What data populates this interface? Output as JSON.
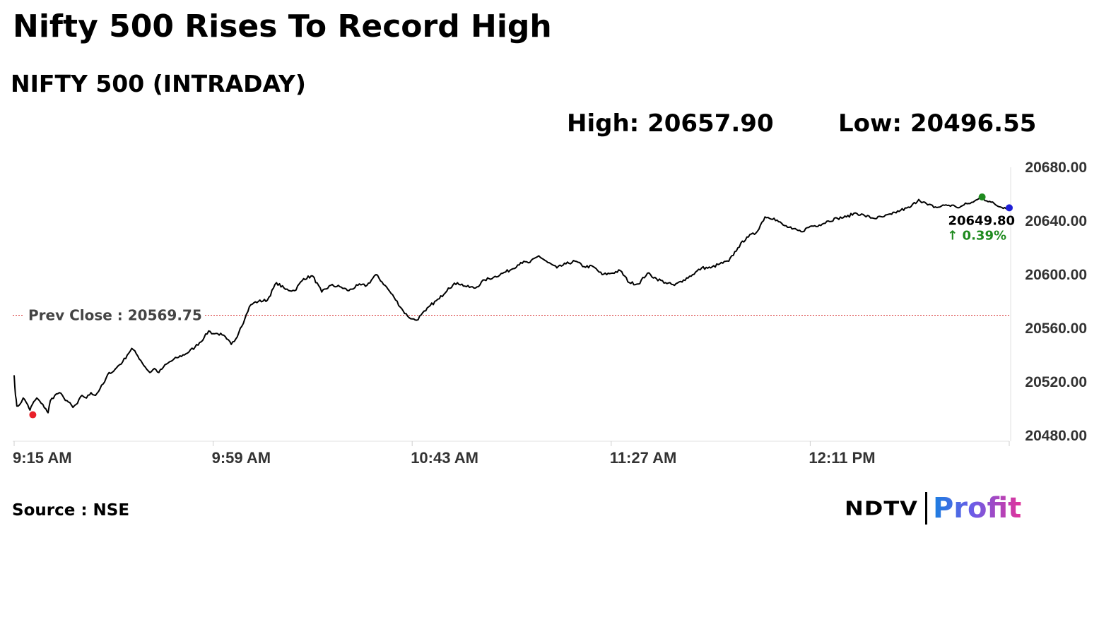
{
  "headline": "Nifty 500 Rises To Record High",
  "chart_data": {
    "type": "line",
    "title": "NIFTY 500 (INTRADAY)",
    "high_label": "High: 20657.90",
    "low_label": "Low: 20496.55",
    "prev_close": 20569.75,
    "prev_close_label": "Prev Close : 20569.75",
    "last_value_label": "20649.80",
    "change_label": "↑ 0.39%",
    "ylim": [
      20480,
      20680
    ],
    "y_ticks": [
      20480,
      20520,
      20560,
      20600,
      20640,
      20680
    ],
    "y_tick_labels": [
      "20480.00",
      "20520.00",
      "20560.00",
      "20600.00",
      "20640.00",
      "20680.00"
    ],
    "x_tick_labels": [
      "9:15 AM",
      "9:59 AM",
      "10:43 AM",
      "11:27 AM",
      "12:11 PM"
    ],
    "x_minutes_after_open": [
      0,
      44,
      88,
      132,
      176
    ],
    "xlim_minutes": [
      0,
      220
    ],
    "grid": false,
    "series": [
      {
        "color": "#000000",
        "x": [
          0,
          0.3,
          0.6,
          1.2,
          2,
          3,
          3.5,
          4,
          5,
          6,
          7,
          7.5,
          8,
          9,
          10,
          11,
          12,
          13,
          14,
          15,
          16,
          17,
          18,
          19,
          20,
          21,
          22,
          23,
          24,
          25,
          26,
          27,
          28,
          29,
          30,
          31,
          32,
          33,
          34,
          36,
          38,
          40,
          42,
          43,
          44,
          45,
          46,
          47,
          48,
          49,
          50,
          51,
          52,
          53,
          54,
          56,
          58,
          60,
          62,
          64,
          66,
          68,
          70,
          72,
          74,
          76,
          78,
          80,
          82,
          84,
          86,
          87,
          88,
          89,
          90,
          91,
          92,
          94,
          96,
          98,
          100,
          102,
          104,
          106,
          108,
          110,
          112,
          114,
          116,
          118,
          120,
          122,
          124,
          126,
          128,
          130,
          132,
          134,
          136,
          138,
          140,
          142,
          144,
          146,
          148,
          150,
          152,
          154,
          156,
          158,
          160,
          162,
          164,
          166,
          168,
          170,
          172,
          174,
          176,
          178,
          180,
          182,
          184,
          186,
          188,
          190,
          192,
          194,
          196,
          198,
          200,
          202,
          204,
          206,
          208,
          209,
          210,
          211,
          212,
          213,
          214,
          215,
          216,
          217,
          218,
          219,
          220
        ],
        "values": [
          20525,
          20510,
          20502,
          20503,
          20508,
          20503,
          20499,
          20503,
          20508,
          20504,
          20500,
          20497,
          20506,
          20510,
          20512,
          20508,
          20505,
          20501,
          20504,
          20510,
          20508,
          20512,
          20510,
          20515,
          20520,
          20527,
          20528,
          20532,
          20535,
          20540,
          20545,
          20541,
          20536,
          20531,
          20527,
          20530,
          20527,
          20531,
          20534,
          20538,
          20541,
          20546,
          20553,
          20558,
          20556,
          20556,
          20555,
          20552,
          20548,
          20552,
          20560,
          20567,
          20576,
          20579,
          20580,
          20581,
          20594,
          20589,
          20588,
          20597,
          20599,
          20587,
          20592,
          20591,
          20588,
          20592,
          20592,
          20600,
          20592,
          20583,
          20573,
          20569,
          20567,
          20566,
          20570,
          20573,
          20577,
          20582,
          20590,
          20594,
          20591,
          20590,
          20596,
          20598,
          20601,
          20604,
          20609,
          20609,
          20614,
          20609,
          20605,
          20608,
          20610,
          20606,
          20606,
          20600,
          20601,
          20603,
          20594,
          20593,
          20601,
          20597,
          20594,
          20592,
          20596,
          20600,
          20605,
          20605,
          20608,
          20610,
          20620,
          20628,
          20631,
          20643,
          20642,
          20637,
          20634,
          20632,
          20636,
          20637,
          20640,
          20642,
          20643,
          20646,
          20644,
          20642,
          20643,
          20645,
          20648,
          20650,
          20656,
          20652,
          20650,
          20652,
          20651,
          20650,
          20652,
          20653,
          20654,
          20656,
          20657.9,
          20655,
          20654,
          20652,
          20650.5,
          20650,
          20649.8
        ]
      }
    ],
    "marker_colors": {
      "low": "#e8202a",
      "high": "#1e8a1e",
      "last": "#1f1fd6"
    },
    "change_color": "#1e8a1e",
    "prev_close_color": "#d62d2d"
  },
  "source": "Source : NSE",
  "logo": {
    "brand_left": "NDTV",
    "brand_right": "Profit"
  }
}
